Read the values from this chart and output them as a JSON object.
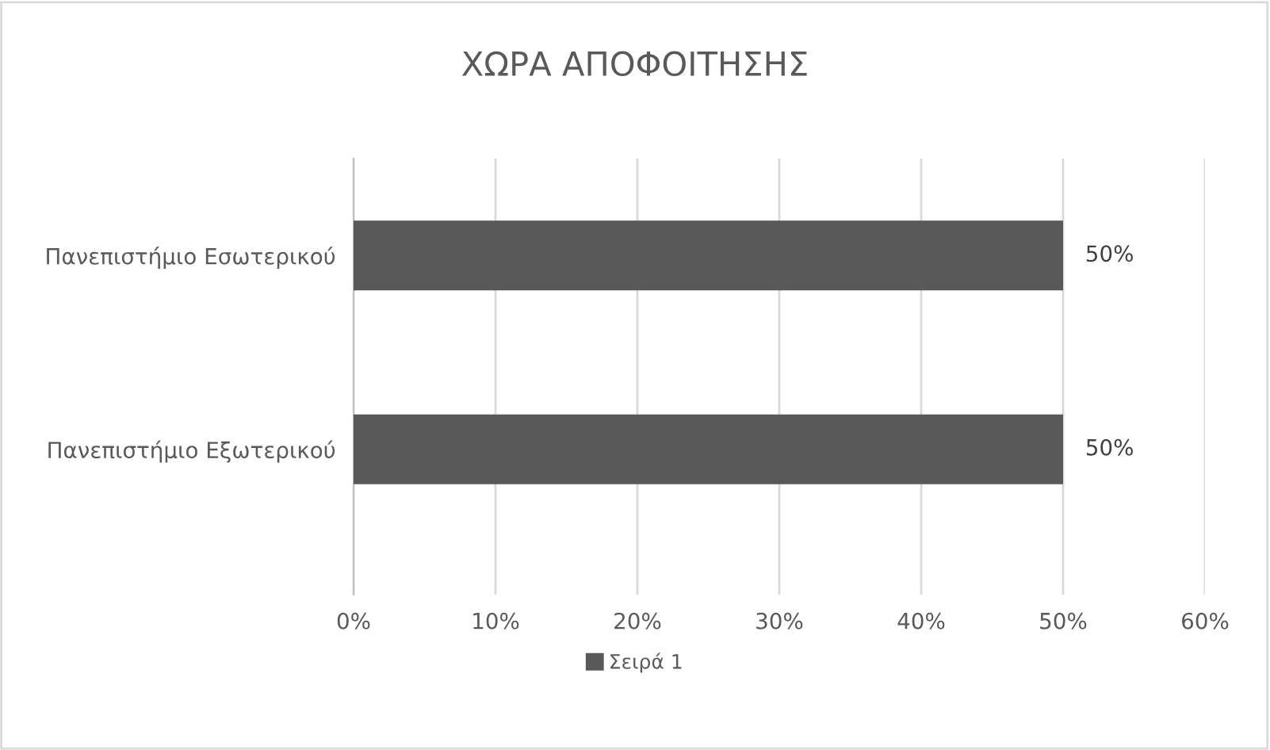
{
  "chart_data": {
    "type": "bar",
    "orientation": "horizontal",
    "title": "ΧΩΡΑ ΑΠΟΦΟΙΤΗΣΗΣ",
    "categories": [
      "Πανεπιστήμιο Εσωτερικού",
      "Πανεπιστήμιο Εξωτερικού"
    ],
    "series": [
      {
        "name": "Σειρά 1",
        "color": "#595959",
        "values": [
          50,
          50
        ]
      }
    ],
    "value_labels": [
      "50%",
      "50%"
    ],
    "xlim": [
      0,
      60
    ],
    "xticks": [
      {
        "value": 0,
        "label": "0%"
      },
      {
        "value": 10,
        "label": "10%"
      },
      {
        "value": 20,
        "label": "20%"
      },
      {
        "value": 30,
        "label": "30%"
      },
      {
        "value": 40,
        "label": "40%"
      },
      {
        "value": 50,
        "label": "50%"
      },
      {
        "value": 60,
        "label": "60%"
      }
    ],
    "grid": "x",
    "legend": "bottom"
  }
}
